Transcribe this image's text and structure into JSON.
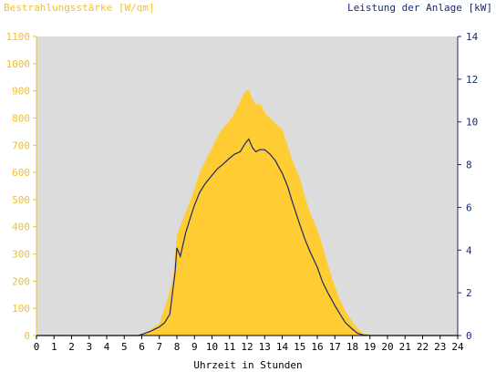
{
  "chart_data": {
    "type": "area",
    "y_left_label": "Bestrahlungsstärke [W/qm]",
    "y_right_label": "Leistung der Anlage [kW]",
    "xlabel": "Uhrzeit in Stunden",
    "x_ticks": [
      "0",
      "1",
      "2",
      "3",
      "4",
      "5",
      "6",
      "7",
      "8",
      "9",
      "10",
      "11",
      "12",
      "13",
      "14",
      "15",
      "16",
      "17",
      "18",
      "19",
      "20",
      "21",
      "22",
      "23",
      "24"
    ],
    "y_left_ticks": [
      "0",
      "100",
      "200",
      "300",
      "400",
      "500",
      "600",
      "700",
      "800",
      "900",
      "1000",
      "1100"
    ],
    "y_right_ticks": [
      "0",
      "2",
      "4",
      "6",
      "8",
      "10",
      "12",
      "14"
    ],
    "xlim": [
      0,
      24
    ],
    "y_left_lim": [
      0,
      1100
    ],
    "y_right_lim": [
      0,
      14
    ],
    "grid": false,
    "colors": {
      "irradiance": "#ffcc33",
      "power": "#1a2a6c",
      "plot_bg": "#dcdcdc",
      "left_axis": "#f0c030",
      "right_axis": "#1a2a6c"
    },
    "series": [
      {
        "name": "Bestrahlungsstärke [W/qm]",
        "axis": "left",
        "x": [
          5.8,
          6.0,
          6.5,
          7.0,
          7.5,
          7.8,
          8.0,
          8.3,
          8.6,
          9.0,
          9.3,
          9.6,
          10.0,
          10.3,
          10.6,
          11.0,
          11.3,
          11.6,
          11.9,
          12.1,
          12.3,
          12.5,
          12.8,
          13.0,
          13.3,
          13.6,
          14.0,
          14.3,
          14.6,
          15.0,
          15.3,
          15.6,
          16.0,
          16.3,
          16.6,
          17.0,
          17.3,
          17.6,
          18.0,
          18.3,
          18.6,
          19.0,
          19.2
        ],
        "y": [
          0,
          5,
          20,
          45,
          140,
          220,
          370,
          420,
          470,
          540,
          600,
          640,
          690,
          730,
          760,
          790,
          820,
          860,
          900,
          905,
          870,
          850,
          850,
          820,
          800,
          780,
          760,
          700,
          640,
          580,
          510,
          450,
          390,
          330,
          260,
          180,
          130,
          90,
          50,
          25,
          8,
          2,
          0
        ]
      },
      {
        "name": "Leistung der Anlage [kW]",
        "axis": "right",
        "x": [
          5.8,
          6.0,
          6.5,
          7.0,
          7.3,
          7.6,
          7.9,
          8.0,
          8.2,
          8.5,
          8.8,
          9.0,
          9.3,
          9.6,
          10.0,
          10.3,
          10.6,
          11.0,
          11.3,
          11.6,
          11.9,
          12.1,
          12.3,
          12.5,
          12.7,
          13.0,
          13.3,
          13.6,
          14.0,
          14.3,
          14.6,
          15.0,
          15.3,
          15.6,
          16.0,
          16.3,
          16.6,
          17.0,
          17.3,
          17.6,
          18.0,
          18.3,
          18.6,
          19.0
        ],
        "y": [
          0,
          0.05,
          0.2,
          0.4,
          0.6,
          1.0,
          3.0,
          4.1,
          3.7,
          4.8,
          5.6,
          6.1,
          6.7,
          7.1,
          7.5,
          7.8,
          8.0,
          8.3,
          8.5,
          8.6,
          9.0,
          9.2,
          8.8,
          8.6,
          8.7,
          8.7,
          8.5,
          8.2,
          7.6,
          7.0,
          6.2,
          5.2,
          4.5,
          3.9,
          3.2,
          2.5,
          2.0,
          1.4,
          1.0,
          0.6,
          0.3,
          0.1,
          0.03,
          0
        ]
      }
    ]
  }
}
